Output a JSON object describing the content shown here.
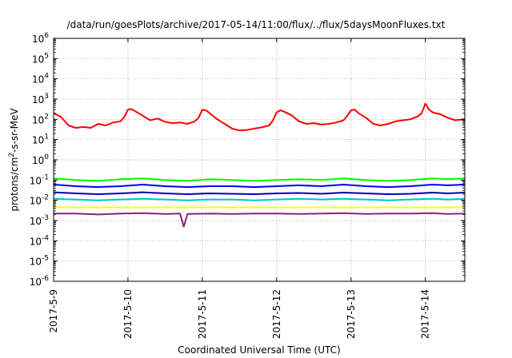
{
  "chart_data": {
    "type": "line",
    "title": "/data/run/goesPlots/archive/2017-05-14/11:00/flux/../flux/5daysMoonFluxes.txt",
    "xlabel": "Coordinated Universal Time (UTC)",
    "ylabel_main": "protons/cm",
    "ylabel_sup": "2",
    "ylabel_rest": "-s-sr-MeV",
    "x_axis": {
      "unit": "days since 2017-5-9 00:00 UTC",
      "range": [
        0,
        5.53
      ],
      "ticks": [
        {
          "value": 0,
          "label": "2017-5-9"
        },
        {
          "value": 1,
          "label": "2017-5-10"
        },
        {
          "value": 2,
          "label": "2017-5-11"
        },
        {
          "value": 3,
          "label": "2017-5-12"
        },
        {
          "value": 4,
          "label": "2017-5-13"
        },
        {
          "value": 5,
          "label": "2017-5-14"
        }
      ]
    },
    "y_axis": {
      "scale": "log",
      "range_exp": [
        -6,
        6
      ],
      "ticks": [
        {
          "exp": 6,
          "base": "10",
          "sup": "6"
        },
        {
          "exp": 5,
          "base": "10",
          "sup": "5"
        },
        {
          "exp": 4,
          "base": "10",
          "sup": "4"
        },
        {
          "exp": 3,
          "base": "10",
          "sup": "3"
        },
        {
          "exp": 2,
          "base": "10",
          "sup": "2"
        },
        {
          "exp": 1,
          "base": "10",
          "sup": "1"
        },
        {
          "exp": 0,
          "base": "10",
          "sup": "0"
        },
        {
          "exp": -1,
          "base": "10",
          "sup": "-1"
        },
        {
          "exp": -2,
          "base": "10",
          "sup": "-2"
        },
        {
          "exp": -3,
          "base": "10",
          "sup": "-3"
        },
        {
          "exp": -4,
          "base": "10",
          "sup": "-4"
        },
        {
          "exp": -5,
          "base": "10",
          "sup": "-5"
        },
        {
          "exp": -6,
          "base": "10",
          "sup": "-6"
        }
      ]
    },
    "grid": true,
    "legend": "none",
    "series": [
      {
        "color": "#ff0000",
        "x": [
          0,
          0.1,
          0.2,
          0.3,
          0.4,
          0.5,
          0.6,
          0.7,
          0.8,
          0.9,
          0.95,
          1.0,
          1.05,
          1.1,
          1.2,
          1.3,
          1.4,
          1.5,
          1.6,
          1.7,
          1.8,
          1.9,
          1.95,
          2.0,
          2.05,
          2.1,
          2.2,
          2.3,
          2.4,
          2.5,
          2.6,
          2.7,
          2.8,
          2.9,
          2.95,
          3.0,
          3.05,
          3.1,
          3.2,
          3.3,
          3.4,
          3.5,
          3.6,
          3.7,
          3.8,
          3.9,
          3.95,
          4.0,
          4.05,
          4.1,
          4.2,
          4.3,
          4.4,
          4.5,
          4.6,
          4.7,
          4.8,
          4.9,
          4.95,
          5.0,
          5.05,
          5.1,
          5.2,
          5.3,
          5.4,
          5.53
        ],
        "y": [
          200,
          130,
          50,
          38,
          42,
          38,
          60,
          50,
          70,
          80,
          130,
          300,
          320,
          250,
          150,
          90,
          110,
          75,
          65,
          70,
          60,
          80,
          120,
          300,
          280,
          200,
          100,
          60,
          35,
          28,
          30,
          35,
          40,
          50,
          90,
          220,
          280,
          240,
          160,
          80,
          60,
          65,
          55,
          60,
          70,
          90,
          150,
          280,
          300,
          200,
          120,
          60,
          50,
          60,
          80,
          90,
          100,
          140,
          200,
          600,
          300,
          220,
          180,
          120,
          90,
          100
        ]
      },
      {
        "color": "#00ff00",
        "x": [
          0,
          0.3,
          0.6,
          0.9,
          1.2,
          1.5,
          1.8,
          2.1,
          2.4,
          2.7,
          3.0,
          3.3,
          3.6,
          3.9,
          4.2,
          4.5,
          4.8,
          5.1,
          5.3,
          5.53
        ],
        "y": [
          0.12,
          0.1,
          0.09,
          0.11,
          0.12,
          0.1,
          0.09,
          0.11,
          0.1,
          0.09,
          0.1,
          0.11,
          0.1,
          0.12,
          0.1,
          0.09,
          0.1,
          0.12,
          0.11,
          0.12
        ]
      },
      {
        "color": "#0000ff",
        "x": [
          0,
          0.3,
          0.6,
          0.9,
          1.2,
          1.5,
          1.8,
          2.1,
          2.4,
          2.7,
          3.0,
          3.3,
          3.6,
          3.9,
          4.2,
          4.5,
          4.8,
          5.1,
          5.3,
          5.53
        ],
        "y": [
          0.06,
          0.05,
          0.045,
          0.05,
          0.06,
          0.05,
          0.045,
          0.05,
          0.05,
          0.045,
          0.05,
          0.055,
          0.05,
          0.06,
          0.05,
          0.045,
          0.05,
          0.06,
          0.055,
          0.06
        ]
      },
      {
        "color": "#0000b4",
        "x": [
          0,
          0.3,
          0.6,
          0.9,
          1.2,
          1.5,
          1.8,
          2.1,
          2.4,
          2.7,
          3.0,
          3.3,
          3.6,
          3.9,
          4.2,
          4.5,
          4.8,
          5.1,
          5.3,
          5.53
        ],
        "y": [
          0.025,
          0.022,
          0.02,
          0.022,
          0.025,
          0.022,
          0.02,
          0.022,
          0.021,
          0.02,
          0.022,
          0.023,
          0.021,
          0.024,
          0.022,
          0.02,
          0.021,
          0.024,
          0.022,
          0.024
        ]
      },
      {
        "color": "#00c8c8",
        "x": [
          0,
          0.3,
          0.6,
          0.9,
          1.2,
          1.5,
          1.8,
          2.1,
          2.4,
          2.7,
          3.0,
          3.3,
          3.6,
          3.9,
          4.2,
          4.5,
          4.8,
          5.1,
          5.3,
          5.53
        ],
        "y": [
          0.012,
          0.011,
          0.01,
          0.011,
          0.012,
          0.011,
          0.01,
          0.011,
          0.011,
          0.01,
          0.011,
          0.012,
          0.011,
          0.012,
          0.011,
          0.01,
          0.011,
          0.012,
          0.011,
          0.012
        ]
      },
      {
        "color": "#ffff00",
        "x": [
          0,
          1,
          2,
          3,
          4,
          5,
          5.53
        ],
        "y": [
          0.0045,
          0.0045,
          0.0045,
          0.0045,
          0.0045,
          0.0045,
          0.0045
        ]
      },
      {
        "color": "#7f2a6e",
        "x": [
          0,
          0.3,
          0.6,
          0.9,
          1.2,
          1.5,
          1.7,
          1.75,
          1.8,
          2.1,
          2.4,
          2.7,
          3.0,
          3.3,
          3.6,
          3.9,
          4.2,
          4.5,
          4.8,
          5.1,
          5.3,
          5.53
        ],
        "y": [
          0.0022,
          0.0022,
          0.002,
          0.0022,
          0.0023,
          0.0021,
          0.0022,
          0.0005,
          0.0021,
          0.0022,
          0.0021,
          0.0022,
          0.0022,
          0.0021,
          0.0022,
          0.0023,
          0.0021,
          0.0022,
          0.0022,
          0.0023,
          0.0021,
          0.0022
        ]
      }
    ]
  }
}
